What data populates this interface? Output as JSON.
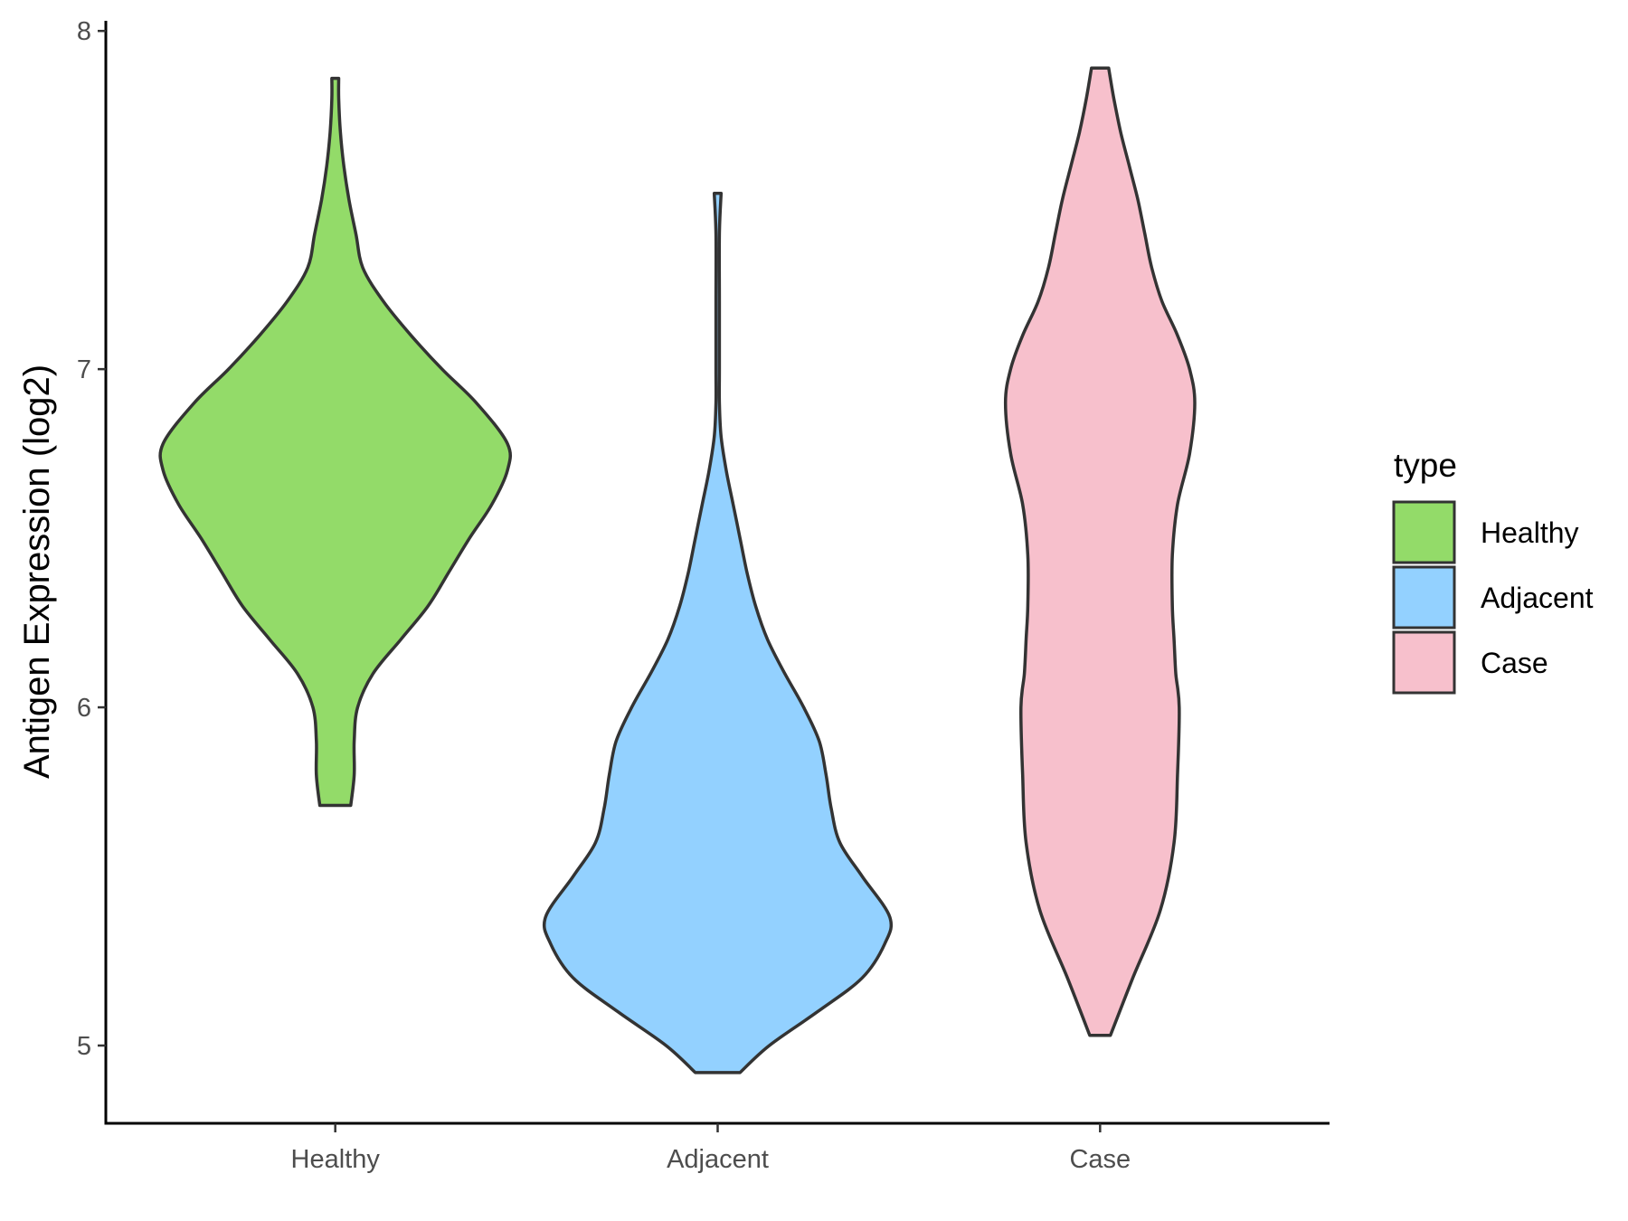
{
  "chart_data": {
    "type": "violin",
    "title": "",
    "xlabel": "",
    "ylabel": "Antigen Expression (log2)",
    "ylim": [
      4.77,
      8.03
    ],
    "y_ticks": [
      5,
      6,
      7,
      8
    ],
    "grid": false,
    "categories": [
      "Healthy",
      "Adjacent",
      "Case"
    ],
    "legend": {
      "title": "type",
      "placement": "right",
      "entries": [
        "Healthy",
        "Adjacent",
        "Case"
      ]
    },
    "series": [
      {
        "category": "Healthy",
        "color": "#93db69",
        "min": 5.71,
        "max": 7.86,
        "density_profile": [
          [
            5.71,
            0.09
          ],
          [
            5.8,
            0.11
          ],
          [
            5.9,
            0.11
          ],
          [
            6.0,
            0.13
          ],
          [
            6.1,
            0.22
          ],
          [
            6.2,
            0.38
          ],
          [
            6.3,
            0.54
          ],
          [
            6.4,
            0.66
          ],
          [
            6.5,
            0.78
          ],
          [
            6.6,
            0.91
          ],
          [
            6.7,
            1.0
          ],
          [
            6.78,
            1.0
          ],
          [
            6.9,
            0.82
          ],
          [
            7.0,
            0.62
          ],
          [
            7.1,
            0.44
          ],
          [
            7.2,
            0.28
          ],
          [
            7.3,
            0.16
          ],
          [
            7.4,
            0.12
          ],
          [
            7.5,
            0.08
          ],
          [
            7.6,
            0.05
          ],
          [
            7.7,
            0.03
          ],
          [
            7.8,
            0.02
          ],
          [
            7.86,
            0.02
          ]
        ]
      },
      {
        "category": "Adjacent",
        "color": "#93d1ff",
        "min": 4.92,
        "max": 7.52,
        "density_profile": [
          [
            4.92,
            0.13
          ],
          [
            5.0,
            0.3
          ],
          [
            5.1,
            0.58
          ],
          [
            5.2,
            0.84
          ],
          [
            5.3,
            0.97
          ],
          [
            5.38,
            1.0
          ],
          [
            5.5,
            0.84
          ],
          [
            5.6,
            0.71
          ],
          [
            5.7,
            0.66
          ],
          [
            5.8,
            0.63
          ],
          [
            5.9,
            0.59
          ],
          [
            6.0,
            0.5
          ],
          [
            6.1,
            0.39
          ],
          [
            6.2,
            0.29
          ],
          [
            6.3,
            0.22
          ],
          [
            6.4,
            0.17
          ],
          [
            6.5,
            0.13
          ],
          [
            6.6,
            0.09
          ],
          [
            6.7,
            0.05
          ],
          [
            6.8,
            0.02
          ],
          [
            6.9,
            0.01
          ],
          [
            7.0,
            0.01
          ],
          [
            7.2,
            0.01
          ],
          [
            7.4,
            0.01
          ],
          [
            7.52,
            0.02
          ]
        ]
      },
      {
        "category": "Case",
        "color": "#f7c0cc",
        "min": 5.03,
        "max": 7.89,
        "density_profile": [
          [
            5.03,
            0.06
          ],
          [
            5.2,
            0.19
          ],
          [
            5.4,
            0.35
          ],
          [
            5.6,
            0.43
          ],
          [
            5.8,
            0.45
          ],
          [
            6.0,
            0.46
          ],
          [
            6.1,
            0.44
          ],
          [
            6.2,
            0.43
          ],
          [
            6.3,
            0.42
          ],
          [
            6.45,
            0.42
          ],
          [
            6.6,
            0.45
          ],
          [
            6.75,
            0.52
          ],
          [
            6.9,
            0.55
          ],
          [
            7.0,
            0.52
          ],
          [
            7.1,
            0.45
          ],
          [
            7.2,
            0.36
          ],
          [
            7.3,
            0.3
          ],
          [
            7.4,
            0.26
          ],
          [
            7.5,
            0.22
          ],
          [
            7.6,
            0.17
          ],
          [
            7.7,
            0.12
          ],
          [
            7.8,
            0.08
          ],
          [
            7.89,
            0.05
          ]
        ]
      }
    ]
  }
}
